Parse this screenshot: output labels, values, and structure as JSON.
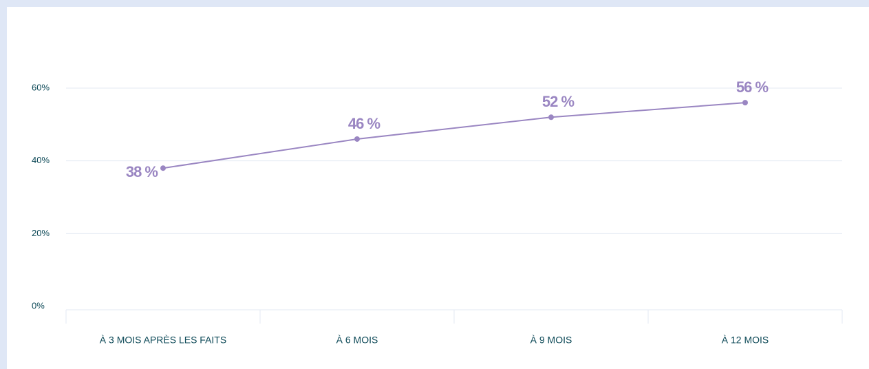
{
  "chart_data": {
    "type": "line",
    "categories": [
      "À 3 MOIS APRÈS LES FAITS",
      "À 6 MOIS",
      "À 9 MOIS",
      "À 12 MOIS"
    ],
    "values": [
      38,
      46,
      52,
      56
    ],
    "value_labels": [
      "38 %",
      "46 %",
      "52 %",
      "56 %"
    ],
    "color": "#9a86c2",
    "ylim": [
      0,
      60
    ],
    "yticks": [
      {
        "value": 0,
        "label": "0%"
      },
      {
        "value": 20,
        "label": "20%"
      },
      {
        "value": 40,
        "label": "40%"
      },
      {
        "value": 60,
        "label": "60%"
      }
    ],
    "grid": true
  }
}
